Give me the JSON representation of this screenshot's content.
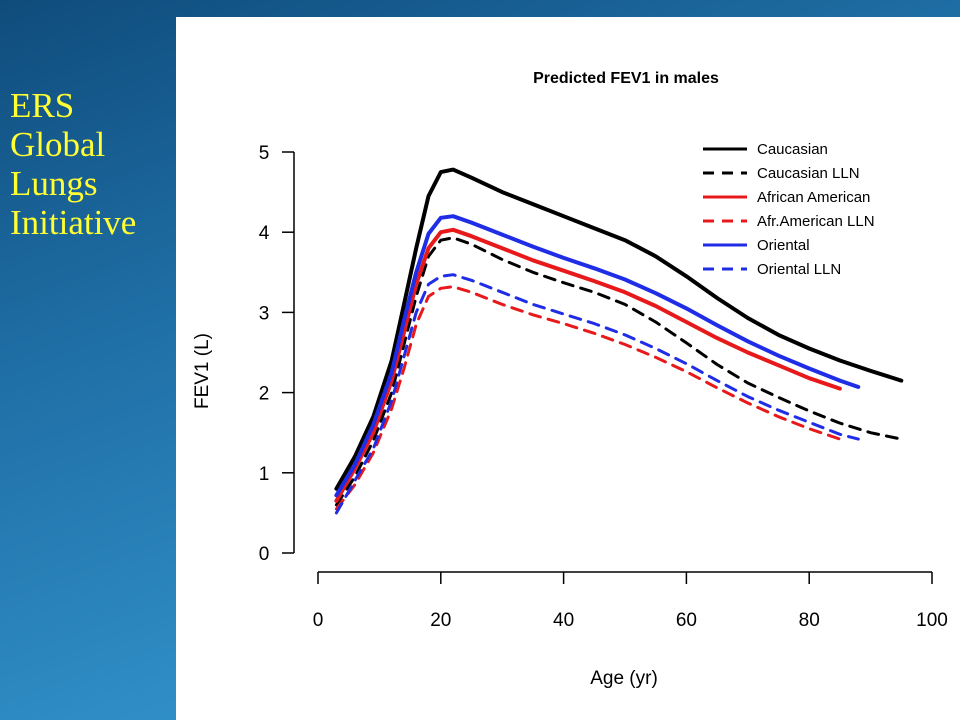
{
  "slide": {
    "title_lines": [
      "ERS",
      "Global",
      "Lungs",
      "Initiative"
    ]
  },
  "colors": {
    "background": "#1f6fa6",
    "title": "#ffff33",
    "caucasian": "#000000",
    "african_american": "#e8191b",
    "oriental": "#1f2de6"
  },
  "chart_data": {
    "type": "line",
    "title": "Predicted FEV1 in males",
    "xlabel": "Age (yr)",
    "ylabel": "FEV1 (L)",
    "xlim": [
      0,
      100
    ],
    "ylim": [
      0,
      5
    ],
    "xticks": [
      0,
      20,
      40,
      60,
      80,
      100
    ],
    "yticks": [
      0,
      1,
      2,
      3,
      4,
      5
    ],
    "legend_position": "top-right",
    "series": [
      {
        "name": "Caucasian",
        "color": "#000000",
        "style": "solid",
        "points": [
          [
            3,
            0.8
          ],
          [
            6,
            1.2
          ],
          [
            9,
            1.7
          ],
          [
            12,
            2.4
          ],
          [
            14,
            3.1
          ],
          [
            16,
            3.8
          ],
          [
            18,
            4.45
          ],
          [
            20,
            4.75
          ],
          [
            22,
            4.78
          ],
          [
            25,
            4.68
          ],
          [
            30,
            4.5
          ],
          [
            35,
            4.35
          ],
          [
            40,
            4.2
          ],
          [
            45,
            4.05
          ],
          [
            50,
            3.9
          ],
          [
            55,
            3.7
          ],
          [
            60,
            3.45
          ],
          [
            65,
            3.18
          ],
          [
            70,
            2.93
          ],
          [
            75,
            2.72
          ],
          [
            80,
            2.55
          ],
          [
            85,
            2.4
          ],
          [
            90,
            2.27
          ],
          [
            95,
            2.15
          ]
        ]
      },
      {
        "name": "Caucasian LLN",
        "color": "#000000",
        "style": "dashed",
        "points": [
          [
            3,
            0.6
          ],
          [
            6,
            0.95
          ],
          [
            9,
            1.4
          ],
          [
            12,
            2.0
          ],
          [
            14,
            2.6
          ],
          [
            16,
            3.2
          ],
          [
            18,
            3.7
          ],
          [
            20,
            3.9
          ],
          [
            22,
            3.93
          ],
          [
            25,
            3.85
          ],
          [
            30,
            3.66
          ],
          [
            35,
            3.5
          ],
          [
            40,
            3.37
          ],
          [
            45,
            3.25
          ],
          [
            50,
            3.1
          ],
          [
            55,
            2.88
          ],
          [
            60,
            2.62
          ],
          [
            65,
            2.35
          ],
          [
            70,
            2.12
          ],
          [
            75,
            1.94
          ],
          [
            80,
            1.77
          ],
          [
            85,
            1.62
          ],
          [
            90,
            1.5
          ],
          [
            95,
            1.42
          ]
        ]
      },
      {
        "name": "African American",
        "color": "#e8191b",
        "style": "solid",
        "points": [
          [
            3,
            0.65
          ],
          [
            6,
            1.05
          ],
          [
            9,
            1.5
          ],
          [
            12,
            2.15
          ],
          [
            14,
            2.75
          ],
          [
            16,
            3.35
          ],
          [
            18,
            3.8
          ],
          [
            20,
            4.0
          ],
          [
            22,
            4.03
          ],
          [
            25,
            3.95
          ],
          [
            30,
            3.8
          ],
          [
            35,
            3.65
          ],
          [
            40,
            3.52
          ],
          [
            45,
            3.39
          ],
          [
            50,
            3.25
          ],
          [
            55,
            3.08
          ],
          [
            60,
            2.88
          ],
          [
            65,
            2.68
          ],
          [
            70,
            2.5
          ],
          [
            75,
            2.34
          ],
          [
            80,
            2.18
          ],
          [
            85,
            2.05
          ]
        ]
      },
      {
        "name": "Afr.American LLN",
        "color": "#e8191b",
        "style": "dashed",
        "points": [
          [
            3,
            0.55
          ],
          [
            6,
            0.85
          ],
          [
            9,
            1.25
          ],
          [
            12,
            1.8
          ],
          [
            14,
            2.3
          ],
          [
            16,
            2.85
          ],
          [
            18,
            3.2
          ],
          [
            20,
            3.3
          ],
          [
            22,
            3.32
          ],
          [
            25,
            3.25
          ],
          [
            30,
            3.1
          ],
          [
            35,
            2.97
          ],
          [
            40,
            2.86
          ],
          [
            45,
            2.74
          ],
          [
            50,
            2.6
          ],
          [
            55,
            2.44
          ],
          [
            60,
            2.26
          ],
          [
            65,
            2.06
          ],
          [
            70,
            1.87
          ],
          [
            75,
            1.7
          ],
          [
            80,
            1.55
          ],
          [
            85,
            1.42
          ]
        ]
      },
      {
        "name": "Oriental",
        "color": "#1f2de6",
        "style": "solid",
        "points": [
          [
            3,
            0.72
          ],
          [
            6,
            1.1
          ],
          [
            9,
            1.6
          ],
          [
            12,
            2.25
          ],
          [
            14,
            2.9
          ],
          [
            16,
            3.5
          ],
          [
            18,
            3.98
          ],
          [
            20,
            4.18
          ],
          [
            22,
            4.2
          ],
          [
            25,
            4.12
          ],
          [
            30,
            3.97
          ],
          [
            35,
            3.82
          ],
          [
            40,
            3.68
          ],
          [
            45,
            3.55
          ],
          [
            50,
            3.41
          ],
          [
            55,
            3.24
          ],
          [
            60,
            3.05
          ],
          [
            65,
            2.84
          ],
          [
            70,
            2.64
          ],
          [
            75,
            2.46
          ],
          [
            80,
            2.3
          ],
          [
            85,
            2.15
          ],
          [
            88,
            2.07
          ]
        ]
      },
      {
        "name": "Oriental LLN",
        "color": "#1f2de6",
        "style": "dashed",
        "points": [
          [
            3,
            0.5
          ],
          [
            6,
            0.9
          ],
          [
            9,
            1.3
          ],
          [
            12,
            1.9
          ],
          [
            14,
            2.45
          ],
          [
            16,
            3.0
          ],
          [
            18,
            3.35
          ],
          [
            20,
            3.45
          ],
          [
            22,
            3.47
          ],
          [
            25,
            3.4
          ],
          [
            30,
            3.25
          ],
          [
            35,
            3.1
          ],
          [
            40,
            2.98
          ],
          [
            45,
            2.86
          ],
          [
            50,
            2.72
          ],
          [
            55,
            2.55
          ],
          [
            60,
            2.36
          ],
          [
            65,
            2.15
          ],
          [
            70,
            1.95
          ],
          [
            75,
            1.78
          ],
          [
            80,
            1.63
          ],
          [
            85,
            1.48
          ],
          [
            88,
            1.42
          ]
        ]
      }
    ]
  }
}
